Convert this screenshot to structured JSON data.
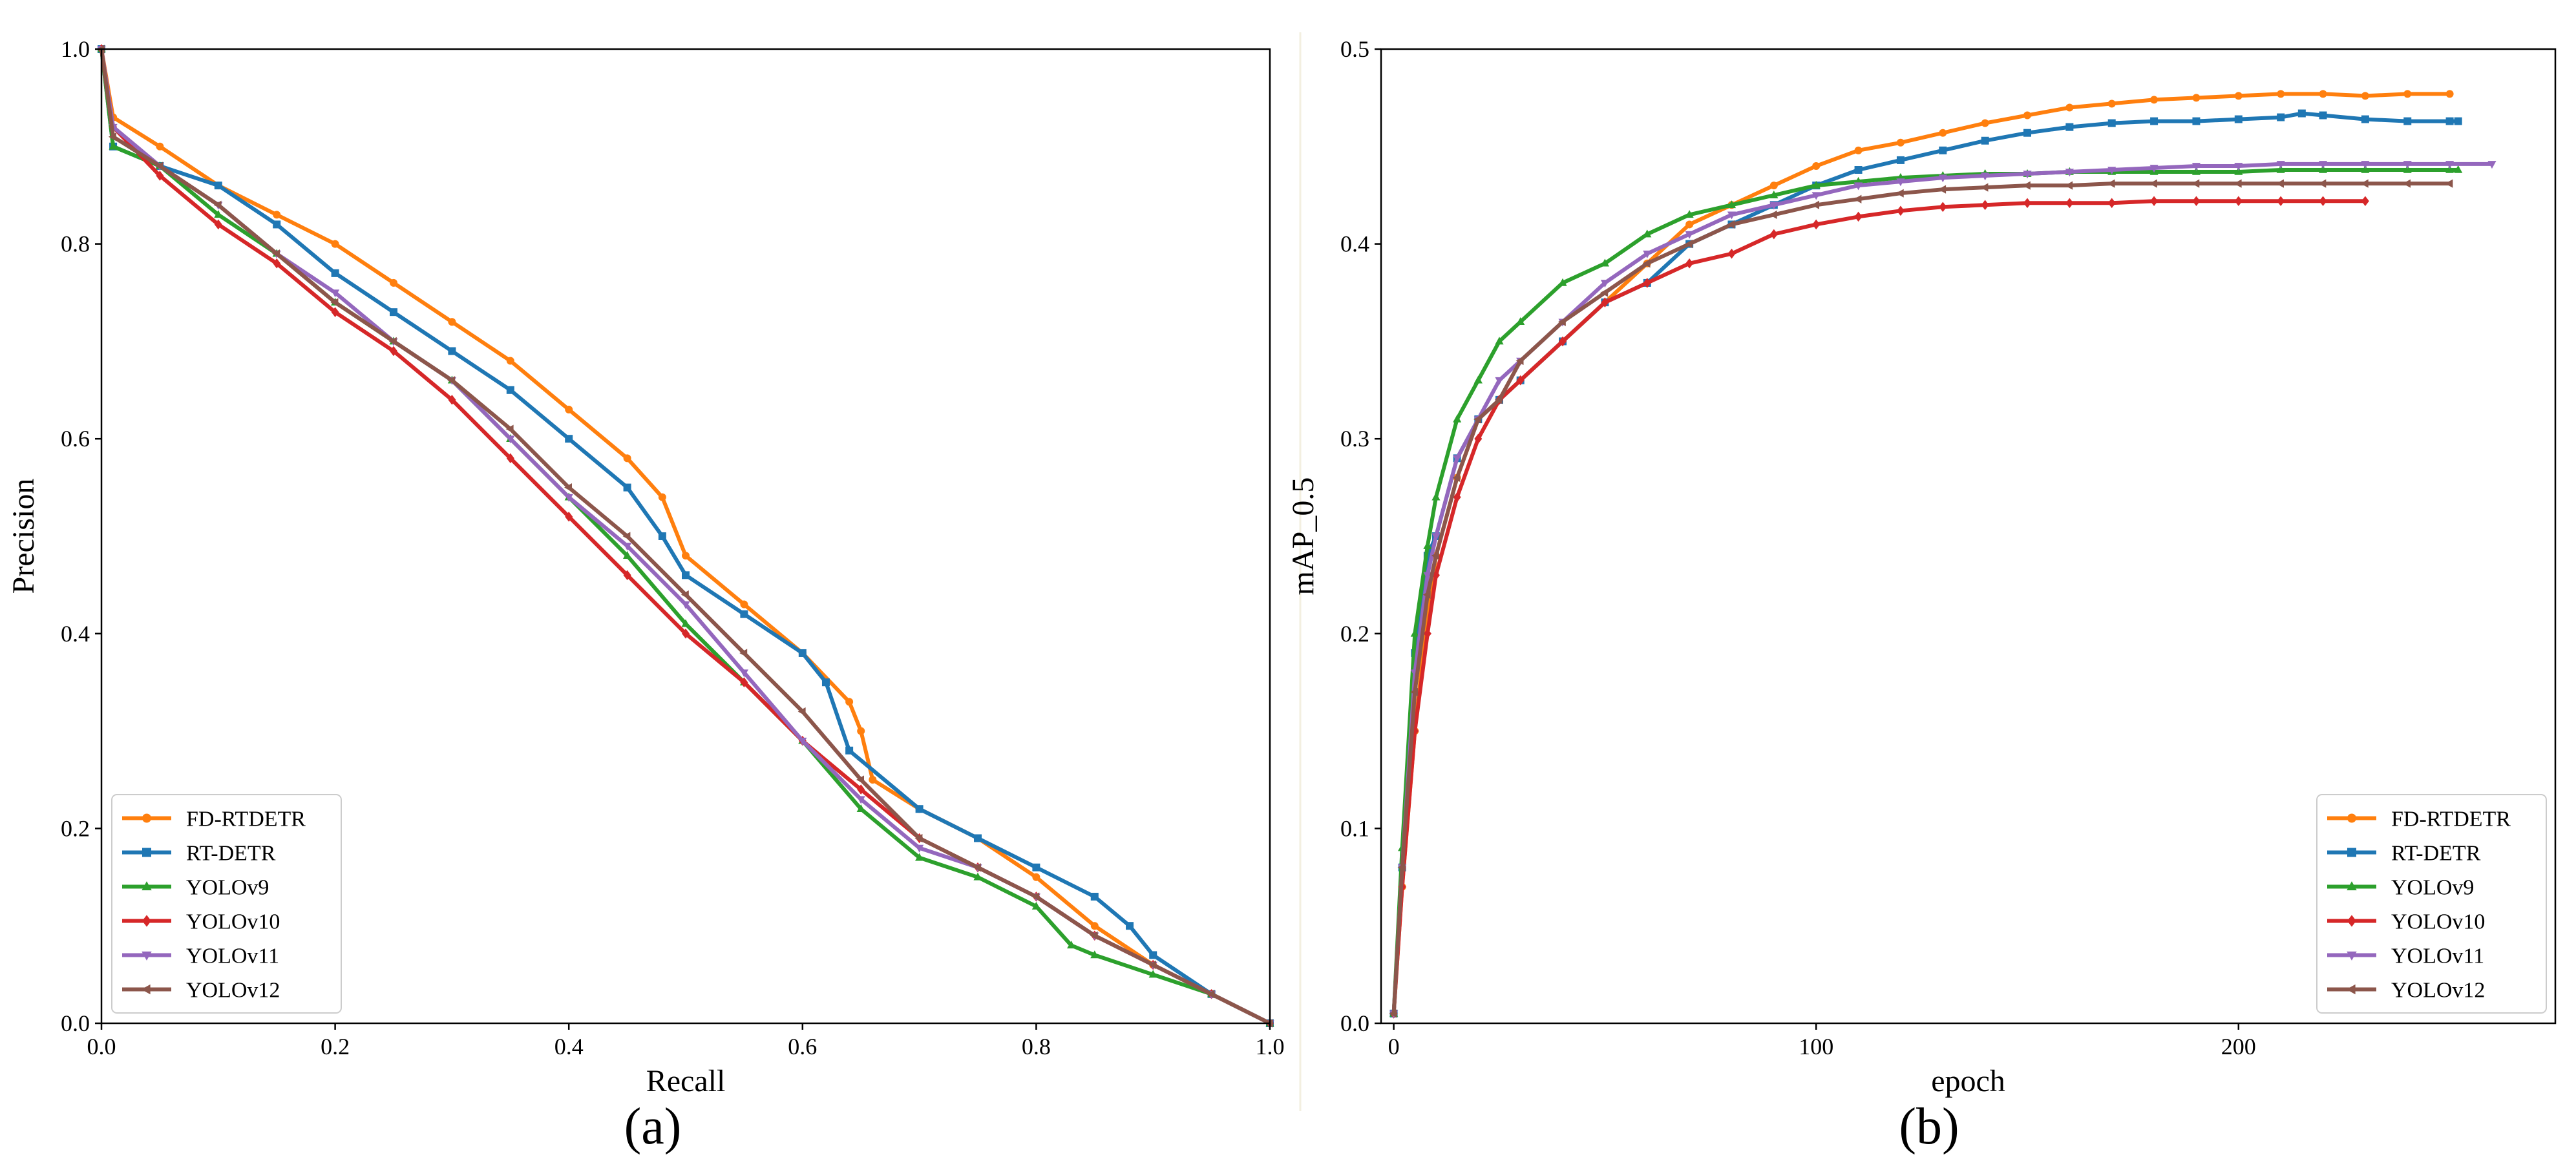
{
  "captions": {
    "a": "(a)",
    "b": "(b)"
  },
  "chart_data": [
    {
      "type": "line",
      "caption": "(a)",
      "xlabel": "Recall",
      "ylabel": "Precision",
      "xlim": [
        0,
        1
      ],
      "ylim": [
        0,
        1
      ],
      "xticks": [
        "0.0",
        "0.2",
        "0.4",
        "0.6",
        "0.8",
        "1.0"
      ],
      "yticks": [
        "0.0",
        "0.2",
        "0.4",
        "0.6",
        "0.8",
        "1.0"
      ],
      "grid": false,
      "legend_position": "lower-left",
      "series": [
        {
          "name": "FD-RTDETR",
          "color": "#ff7f0e",
          "marker": "circle",
          "x": [
            0.0,
            0.01,
            0.05,
            0.1,
            0.15,
            0.2,
            0.25,
            0.3,
            0.35,
            0.4,
            0.45,
            0.48,
            0.5,
            0.55,
            0.6,
            0.64,
            0.65,
            0.66,
            0.7,
            0.75,
            0.8,
            0.85,
            0.9,
            0.95,
            1.0
          ],
          "y": [
            1.0,
            0.93,
            0.9,
            0.86,
            0.83,
            0.8,
            0.76,
            0.72,
            0.68,
            0.63,
            0.58,
            0.54,
            0.48,
            0.43,
            0.38,
            0.33,
            0.3,
            0.25,
            0.22,
            0.19,
            0.15,
            0.1,
            0.06,
            0.03,
            0.0
          ]
        },
        {
          "name": "RT-DETR",
          "color": "#1f77b4",
          "marker": "square",
          "x": [
            0.0,
            0.01,
            0.05,
            0.1,
            0.15,
            0.2,
            0.25,
            0.3,
            0.35,
            0.4,
            0.45,
            0.48,
            0.5,
            0.55,
            0.6,
            0.62,
            0.64,
            0.7,
            0.75,
            0.8,
            0.85,
            0.88,
            0.9,
            0.95,
            1.0
          ],
          "y": [
            1.0,
            0.9,
            0.88,
            0.86,
            0.82,
            0.77,
            0.73,
            0.69,
            0.65,
            0.6,
            0.55,
            0.5,
            0.46,
            0.42,
            0.38,
            0.35,
            0.28,
            0.22,
            0.19,
            0.16,
            0.13,
            0.1,
            0.07,
            0.03,
            0.0
          ]
        },
        {
          "name": "YOLOv9",
          "color": "#2ca02c",
          "marker": "triangle-up",
          "x": [
            0.0,
            0.01,
            0.05,
            0.1,
            0.15,
            0.2,
            0.25,
            0.3,
            0.35,
            0.4,
            0.45,
            0.5,
            0.55,
            0.6,
            0.65,
            0.7,
            0.75,
            0.8,
            0.83,
            0.85,
            0.9,
            0.95,
            1.0
          ],
          "y": [
            1.0,
            0.9,
            0.88,
            0.83,
            0.79,
            0.74,
            0.7,
            0.66,
            0.6,
            0.54,
            0.48,
            0.41,
            0.35,
            0.29,
            0.22,
            0.17,
            0.15,
            0.12,
            0.08,
            0.07,
            0.05,
            0.03,
            0.0
          ]
        },
        {
          "name": "YOLOv10",
          "color": "#d62728",
          "marker": "diamond",
          "x": [
            0.0,
            0.01,
            0.05,
            0.1,
            0.15,
            0.2,
            0.25,
            0.3,
            0.35,
            0.4,
            0.45,
            0.5,
            0.55,
            0.6,
            0.65,
            0.7,
            0.75,
            0.8,
            0.85,
            0.9,
            0.95,
            1.0
          ],
          "y": [
            1.0,
            0.92,
            0.87,
            0.82,
            0.78,
            0.73,
            0.69,
            0.64,
            0.58,
            0.52,
            0.46,
            0.4,
            0.35,
            0.29,
            0.24,
            0.19,
            0.16,
            0.13,
            0.09,
            0.06,
            0.03,
            0.0
          ]
        },
        {
          "name": "YOLOv11",
          "color": "#9467bd",
          "marker": "triangle-down",
          "x": [
            0.0,
            0.01,
            0.05,
            0.1,
            0.15,
            0.2,
            0.25,
            0.3,
            0.35,
            0.4,
            0.45,
            0.5,
            0.55,
            0.6,
            0.65,
            0.7,
            0.75,
            0.8,
            0.85,
            0.9,
            0.95,
            1.0
          ],
          "y": [
            1.0,
            0.92,
            0.88,
            0.84,
            0.79,
            0.75,
            0.7,
            0.66,
            0.6,
            0.54,
            0.49,
            0.43,
            0.36,
            0.29,
            0.23,
            0.18,
            0.16,
            0.13,
            0.09,
            0.06,
            0.03,
            0.0
          ]
        },
        {
          "name": "YOLOv12",
          "color": "#8c564b",
          "marker": "tri-left",
          "x": [
            0.0,
            0.01,
            0.05,
            0.1,
            0.15,
            0.2,
            0.25,
            0.3,
            0.35,
            0.4,
            0.45,
            0.5,
            0.55,
            0.6,
            0.65,
            0.7,
            0.75,
            0.8,
            0.85,
            0.9,
            0.95,
            1.0
          ],
          "y": [
            1.0,
            0.91,
            0.88,
            0.84,
            0.79,
            0.74,
            0.7,
            0.66,
            0.61,
            0.55,
            0.5,
            0.44,
            0.38,
            0.32,
            0.25,
            0.19,
            0.16,
            0.13,
            0.09,
            0.06,
            0.03,
            0.0
          ]
        }
      ]
    },
    {
      "type": "line",
      "caption": "(b)",
      "xlabel": "epoch",
      "ylabel": "mAP_0.5",
      "xlim": [
        -3,
        275
      ],
      "ylim": [
        0,
        0.5
      ],
      "xticks": [
        0,
        100,
        200
      ],
      "yticks": [
        "0.0",
        "0.1",
        "0.2",
        "0.3",
        "0.4",
        "0.5"
      ],
      "grid": false,
      "legend_position": "lower-right",
      "series": [
        {
          "name": "FD-RTDETR",
          "color": "#ff7f0e",
          "marker": "circle",
          "x": [
            0,
            2,
            5,
            8,
            10,
            15,
            20,
            25,
            30,
            40,
            50,
            60,
            70,
            80,
            90,
            100,
            110,
            120,
            130,
            140,
            150,
            160,
            170,
            180,
            190,
            200,
            210,
            220,
            230,
            240,
            250
          ],
          "y": [
            0.005,
            0.07,
            0.15,
            0.21,
            0.24,
            0.28,
            0.31,
            0.32,
            0.33,
            0.35,
            0.37,
            0.39,
            0.41,
            0.42,
            0.43,
            0.44,
            0.448,
            0.452,
            0.457,
            0.462,
            0.466,
            0.47,
            0.472,
            0.474,
            0.475,
            0.476,
            0.477,
            0.477,
            0.476,
            0.477,
            0.477
          ]
        },
        {
          "name": "RT-DETR",
          "color": "#1f77b4",
          "marker": "square",
          "x": [
            0,
            2,
            5,
            8,
            10,
            15,
            20,
            25,
            30,
            40,
            50,
            60,
            70,
            80,
            90,
            100,
            110,
            120,
            130,
            140,
            150,
            160,
            170,
            180,
            190,
            200,
            210,
            215,
            220,
            230,
            240,
            250,
            252
          ],
          "y": [
            0.005,
            0.08,
            0.19,
            0.24,
            0.25,
            0.29,
            0.31,
            0.32,
            0.33,
            0.35,
            0.37,
            0.38,
            0.4,
            0.41,
            0.42,
            0.43,
            0.438,
            0.443,
            0.448,
            0.453,
            0.457,
            0.46,
            0.462,
            0.463,
            0.463,
            0.464,
            0.465,
            0.467,
            0.466,
            0.464,
            0.463,
            0.463,
            0.463
          ]
        },
        {
          "name": "YOLOv9",
          "color": "#2ca02c",
          "marker": "triangle-up",
          "x": [
            0,
            2,
            5,
            8,
            10,
            15,
            20,
            25,
            30,
            40,
            50,
            60,
            70,
            80,
            90,
            100,
            110,
            120,
            130,
            140,
            150,
            160,
            170,
            180,
            190,
            200,
            210,
            220,
            230,
            240,
            250,
            252
          ],
          "y": [
            0.005,
            0.09,
            0.2,
            0.245,
            0.27,
            0.31,
            0.33,
            0.35,
            0.36,
            0.38,
            0.39,
            0.405,
            0.415,
            0.42,
            0.425,
            0.43,
            0.432,
            0.434,
            0.435,
            0.436,
            0.436,
            0.437,
            0.437,
            0.437,
            0.437,
            0.437,
            0.438,
            0.438,
            0.438,
            0.438,
            0.438,
            0.438
          ]
        },
        {
          "name": "YOLOv10",
          "color": "#d62728",
          "marker": "diamond",
          "x": [
            0,
            2,
            5,
            8,
            10,
            15,
            20,
            25,
            30,
            40,
            50,
            60,
            70,
            80,
            90,
            100,
            110,
            120,
            130,
            140,
            150,
            160,
            170,
            180,
            190,
            200,
            210,
            220,
            230
          ],
          "y": [
            0.005,
            0.07,
            0.15,
            0.2,
            0.23,
            0.27,
            0.3,
            0.32,
            0.33,
            0.35,
            0.37,
            0.38,
            0.39,
            0.395,
            0.405,
            0.41,
            0.414,
            0.417,
            0.419,
            0.42,
            0.421,
            0.421,
            0.421,
            0.422,
            0.422,
            0.422,
            0.422,
            0.422,
            0.422
          ]
        },
        {
          "name": "YOLOv11",
          "color": "#9467bd",
          "marker": "triangle-down",
          "x": [
            0,
            2,
            5,
            8,
            10,
            15,
            20,
            25,
            30,
            40,
            50,
            60,
            70,
            80,
            90,
            100,
            110,
            120,
            130,
            140,
            150,
            160,
            170,
            180,
            190,
            200,
            210,
            220,
            230,
            240,
            250,
            260
          ],
          "y": [
            0.005,
            0.08,
            0.18,
            0.23,
            0.25,
            0.29,
            0.31,
            0.33,
            0.34,
            0.36,
            0.38,
            0.395,
            0.405,
            0.415,
            0.42,
            0.425,
            0.43,
            0.432,
            0.434,
            0.435,
            0.436,
            0.437,
            0.438,
            0.439,
            0.44,
            0.44,
            0.441,
            0.441,
            0.441,
            0.441,
            0.441,
            0.441
          ]
        },
        {
          "name": "YOLOv12",
          "color": "#8c564b",
          "marker": "tri-left",
          "x": [
            0,
            2,
            5,
            8,
            10,
            15,
            20,
            25,
            30,
            40,
            50,
            60,
            70,
            80,
            90,
            100,
            110,
            120,
            130,
            140,
            150,
            160,
            170,
            180,
            190,
            200,
            210,
            220,
            230,
            240,
            250
          ],
          "y": [
            0.005,
            0.08,
            0.17,
            0.22,
            0.24,
            0.28,
            0.31,
            0.32,
            0.34,
            0.36,
            0.375,
            0.39,
            0.4,
            0.41,
            0.415,
            0.42,
            0.423,
            0.426,
            0.428,
            0.429,
            0.43,
            0.43,
            0.431,
            0.431,
            0.431,
            0.431,
            0.431,
            0.431,
            0.431,
            0.431,
            0.431
          ]
        }
      ]
    }
  ]
}
